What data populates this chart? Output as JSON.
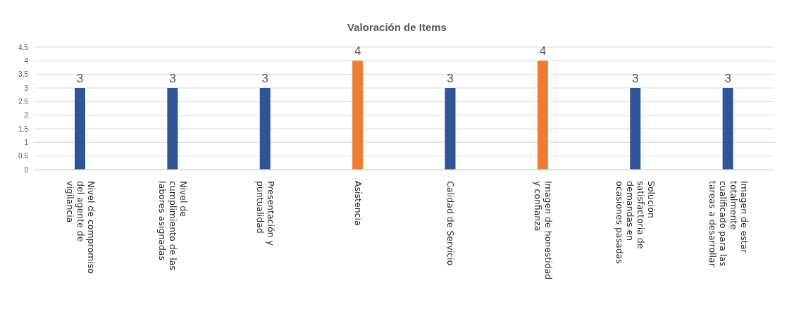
{
  "chart_data": {
    "type": "bar",
    "title": "Valoración de Items",
    "categories": [
      "Nivel de compromiso del agente de vigilancia",
      "Nivel de cumplimiento de las labores asignadas",
      "Presentación y puntualidad",
      "Asistencia",
      "Calidad de Servicio",
      "Imagen de honestidad y confianza",
      "Solución satisfactoria de demandas en ocasiones pasadas",
      "Imagen de estar totalmente cualificado para las tareas a desarrollar"
    ],
    "values": [
      3,
      3,
      3,
      4,
      3,
      4,
      3,
      3
    ],
    "colors": [
      "#2f5597",
      "#2f5597",
      "#2f5597",
      "#ed7d31",
      "#2f5597",
      "#ed7d31",
      "#2f5597",
      "#2f5597"
    ],
    "ylim": [
      0,
      4.5
    ],
    "yticks": [
      0,
      0.5,
      1,
      1.5,
      2,
      2.5,
      3,
      3.5,
      4,
      4.5
    ],
    "grid": "y",
    "data_labels": true
  }
}
